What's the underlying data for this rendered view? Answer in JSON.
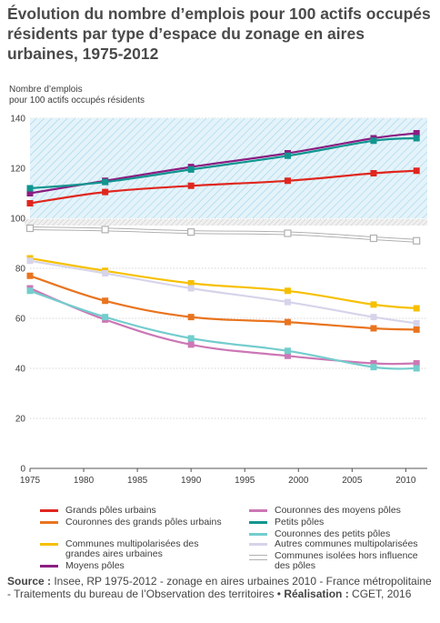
{
  "title": "Évolution du nombre d’emplois pour 100 actifs occupés résidents par type d’espace du zonage en aires urbaines, 1975-2012",
  "y_axis_title_line1": "Nombre d’emplois",
  "y_axis_title_line2": "pour 100 actifs occupés résidents",
  "source": {
    "label_source": "Source :",
    "text_source": " Insee, RP 1975-2012 - zonage en aires urbaines 2010 - France métropolitaine - Traitements du bureau de l’Observation des territoires • ",
    "label_realisation": "Réalisation :",
    "text_realisation": " CGET, 2016"
  },
  "chart_data": {
    "type": "line",
    "x": [
      1975,
      1982,
      1990,
      1999,
      2007,
      2011
    ],
    "xlim": [
      1975,
      2012
    ],
    "x_ticks": [
      "1975",
      "1980",
      "1985",
      "1990",
      "1995",
      "2000",
      "2005",
      "2010"
    ],
    "ylim": [
      0,
      140
    ],
    "y_ticks": [
      "0",
      "20",
      "40",
      "60",
      "80",
      "100",
      "120",
      "140"
    ],
    "axis_break": "between 96 and 100",
    "shaded_band": [
      100,
      140
    ],
    "series": [
      {
        "name": "Grands pôles urbains",
        "color": "#e0261e",
        "marker": "square",
        "values": [
          106,
          110.5,
          113,
          115,
          118,
          119
        ]
      },
      {
        "name": "Couronnes des grands pôles urbains",
        "color": "#e9741f",
        "marker": "square",
        "values": [
          77,
          67,
          60.5,
          58.5,
          56,
          55.5
        ]
      },
      {
        "name": "Communes multipolarisées des grandes aires urbaines",
        "color": "#f6c000",
        "marker": "square",
        "values": [
          84,
          79,
          74,
          71,
          65.5,
          64
        ]
      },
      {
        "name": "Moyens pôles",
        "color": "#8b1d82",
        "marker": "square",
        "values": [
          110,
          115,
          120.5,
          126,
          132,
          134
        ]
      },
      {
        "name": "Couronnes des moyens pôles",
        "color": "#cc77b5",
        "marker": "square",
        "values": [
          72,
          59.5,
          49.5,
          45,
          42,
          42
        ]
      },
      {
        "name": "Petits pôles",
        "color": "#10958f",
        "marker": "square",
        "values": [
          112,
          114.5,
          119.5,
          125,
          131,
          132
        ]
      },
      {
        "name": "Couronnes des petits pôles",
        "color": "#74cdcd",
        "marker": "square",
        "values": [
          71,
          60.5,
          52,
          47,
          40.5,
          40
        ]
      },
      {
        "name": "Autres communes multipolarisées",
        "color": "#d6d4ea",
        "marker": "square",
        "values": [
          83,
          78,
          72,
          66.5,
          60.5,
          58
        ]
      },
      {
        "name": "Communes isolées hors influence des pôles",
        "color": "#b0b0b0",
        "marker": "square",
        "line_style": "double",
        "values": [
          96,
          95.5,
          94.5,
          94,
          92,
          91
        ]
      }
    ]
  }
}
